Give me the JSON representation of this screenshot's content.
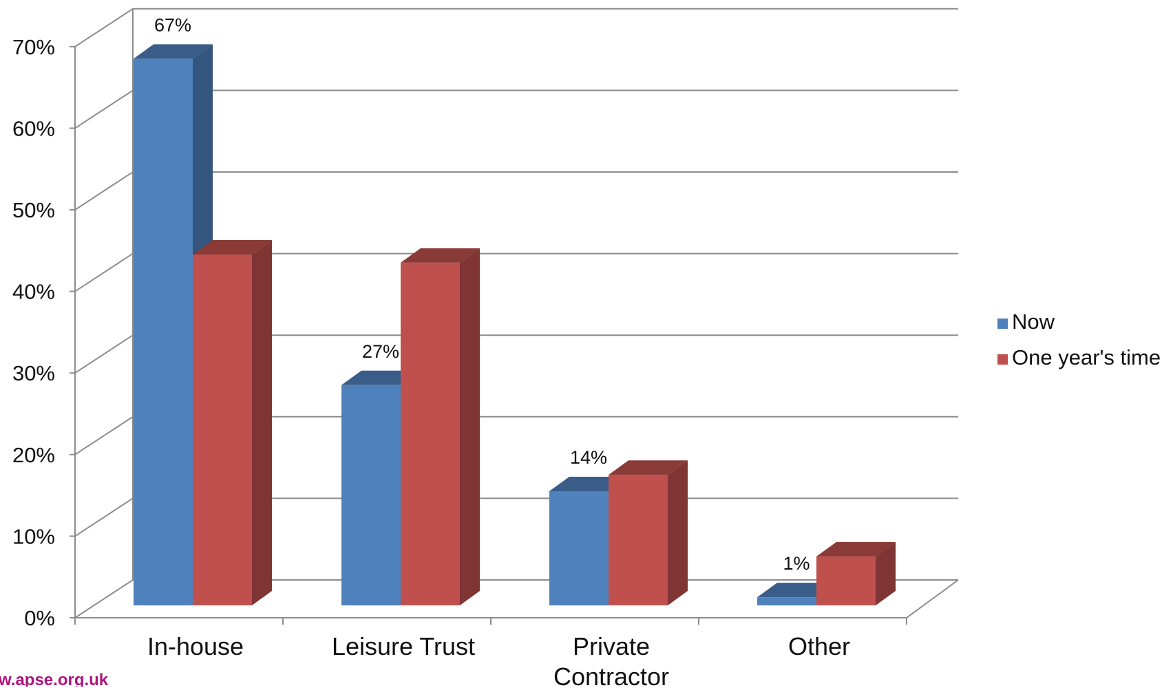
{
  "chart_data": {
    "type": "bar",
    "categories": [
      "In-house",
      "Leisure Trust",
      "Private Contractor",
      "Other"
    ],
    "series": [
      {
        "name": "Now",
        "values": [
          67,
          27,
          14,
          1
        ],
        "color": "#4f81bd",
        "data_labels": [
          "67%",
          "27%",
          "14%",
          "1%"
        ]
      },
      {
        "name": "One year's time",
        "values": [
          43,
          42,
          16,
          6
        ],
        "color": "#c0504d",
        "data_labels": [
          "",
          "",
          "",
          ""
        ]
      }
    ],
    "ylim": [
      0,
      70
    ],
    "y_ticks": [
      0,
      10,
      20,
      30,
      40,
      50,
      60,
      70
    ],
    "y_tick_labels": [
      "0%",
      "10%",
      "20%",
      "30%",
      "40%",
      "50%",
      "60%",
      "70%"
    ],
    "grid": true,
    "legend_position": "right",
    "title": "",
    "xlabel": "",
    "ylabel": "",
    "style": "3d-column"
  },
  "footer": {
    "url": "w.apse.org.uk"
  }
}
